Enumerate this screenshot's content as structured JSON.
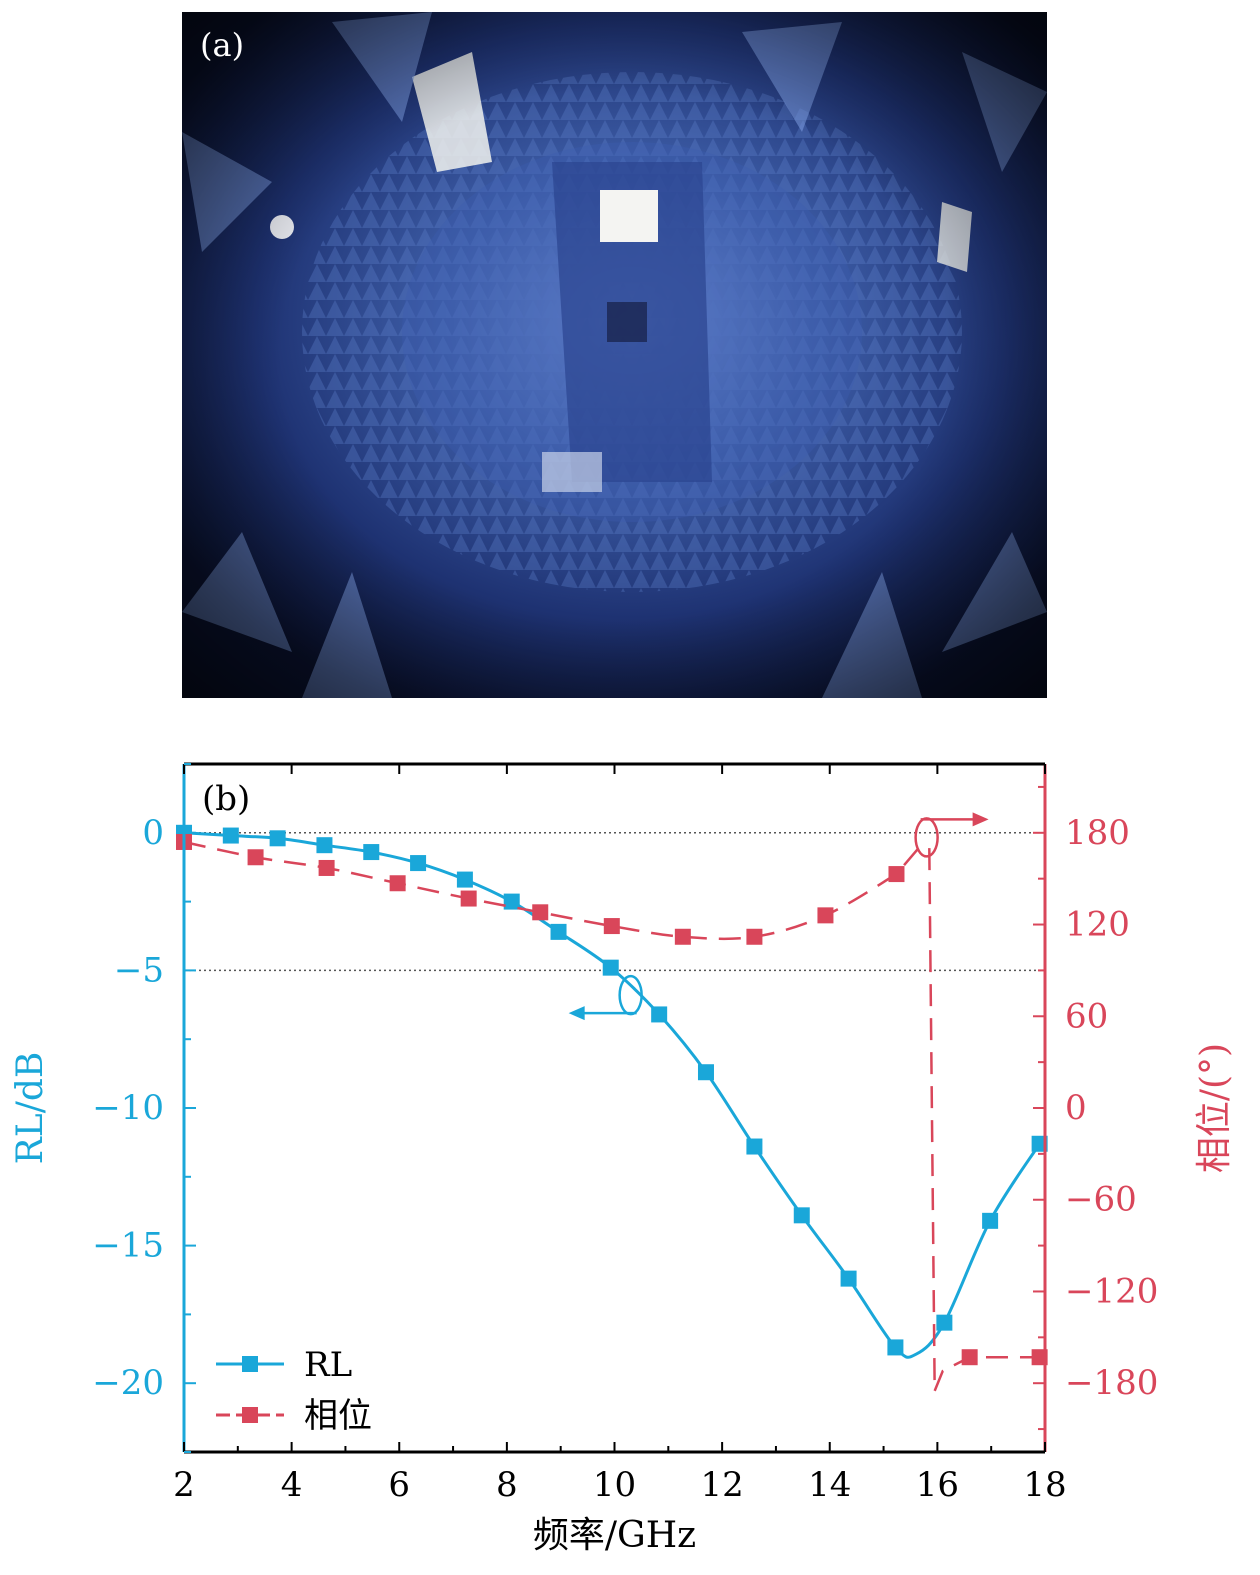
{
  "panel_a": {
    "label": "(a)",
    "image_description": "anechoic-chamber-photo"
  },
  "chart_data": {
    "type": "line",
    "panel_label": "(b)",
    "title": "",
    "xlabel": "频率/GHz",
    "ylabel_left": "RL/dB",
    "ylabel_right": "相位/(°)",
    "xlim": [
      2,
      18
    ],
    "ylim_left": [
      -22.5,
      2.5
    ],
    "ylim_right": [
      -225,
      225
    ],
    "x_ticks": [
      2,
      4,
      6,
      8,
      10,
      12,
      14,
      16,
      18
    ],
    "y_left_ticks": [
      0,
      -5,
      -10,
      -15,
      -20
    ],
    "y_left_tick_labels": [
      "0",
      "−5",
      "−10",
      "−15",
      "−20"
    ],
    "y_right_ticks": [
      180,
      120,
      60,
      0,
      -60,
      -120,
      -180
    ],
    "y_right_tick_labels": [
      "180",
      "120",
      "60",
      "0",
      "−60",
      "−120",
      "−180"
    ],
    "reference_lines_left": [
      0,
      -5
    ],
    "grid": false,
    "legend_position": "bottom-left",
    "colors": {
      "rl": "#1aa7d9",
      "phase": "#d9465a",
      "axis": "#000000"
    },
    "series": [
      {
        "name": "RL",
        "axis": "left",
        "style": "solid",
        "x": [
          2.0,
          2.87,
          3.74,
          4.61,
          5.48,
          6.35,
          7.22,
          8.09,
          8.96,
          9.93,
          10.83,
          11.7,
          12.6,
          13.48,
          14.35,
          15.22,
          16.13,
          16.98,
          17.9
        ],
        "y": [
          0.0,
          -0.1,
          -0.2,
          -0.45,
          -0.7,
          -1.1,
          -1.7,
          -2.5,
          -3.6,
          -4.9,
          -6.6,
          -8.7,
          -11.4,
          -13.9,
          -16.2,
          -18.7,
          -17.8,
          -14.1,
          -11.3
        ]
      },
      {
        "name": "相位",
        "axis": "right",
        "style": "dashed",
        "x": [
          2.0,
          3.33,
          4.65,
          5.97,
          7.29,
          8.62,
          9.95,
          11.27,
          12.6,
          13.92,
          15.24,
          16.6,
          17.9
        ],
        "y": [
          174,
          164,
          157,
          147,
          137,
          128,
          119,
          112,
          112,
          126,
          153,
          -163,
          -163
        ]
      }
    ],
    "annotations": [
      {
        "type": "axis-indicator",
        "target": "left",
        "near_x": 10.3,
        "near_y": -5.9
      },
      {
        "type": "axis-indicator",
        "target": "right",
        "near_x": 15.8,
        "near_y": 0
      }
    ]
  }
}
